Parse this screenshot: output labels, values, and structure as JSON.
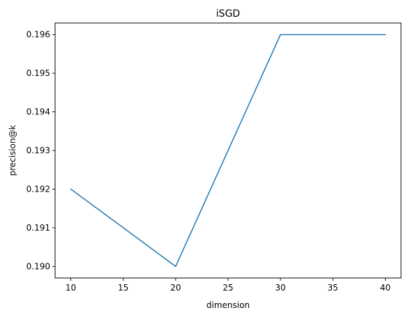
{
  "chart_data": {
    "type": "line",
    "title": "iSGD",
    "xlabel": "dimension",
    "ylabel": "precision@k",
    "x": [
      10,
      20,
      30,
      40
    ],
    "series": [
      {
        "values": [
          0.192,
          0.19,
          0.196,
          0.196
        ],
        "color": "#1f77b4"
      }
    ],
    "xlim": [
      8.5,
      41.5
    ],
    "ylim": [
      0.1897,
      0.1963
    ],
    "xticks": [
      10,
      15,
      20,
      25,
      30,
      35,
      40
    ],
    "xtick_labels": [
      "10",
      "15",
      "20",
      "25",
      "30",
      "35",
      "40"
    ],
    "yticks": [
      0.19,
      0.191,
      0.192,
      0.193,
      0.194,
      0.195,
      0.196
    ],
    "ytick_labels": [
      "0.190",
      "0.191",
      "0.192",
      "0.193",
      "0.194",
      "0.195",
      "0.196"
    ],
    "grid": false,
    "legend": "none"
  }
}
